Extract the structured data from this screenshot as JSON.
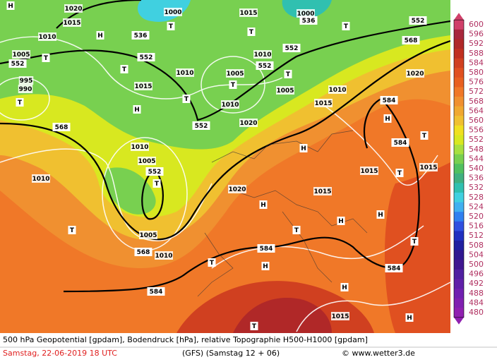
{
  "legend": {
    "levels": [
      600,
      596,
      592,
      588,
      584,
      580,
      576,
      572,
      568,
      564,
      560,
      556,
      552,
      548,
      544,
      540,
      536,
      532,
      528,
      524,
      520,
      516,
      512,
      508,
      504,
      500,
      496,
      492,
      488,
      484,
      480
    ],
    "colors": [
      "#d0406a",
      "#a8283c",
      "#b02828",
      "#c03020",
      "#d04020",
      "#e05020",
      "#e86020",
      "#f07828",
      "#f09030",
      "#f0a830",
      "#f0c030",
      "#f0e020",
      "#d8e820",
      "#a8e040",
      "#78d050",
      "#50c060",
      "#40b080",
      "#30c0b0",
      "#40d0e0",
      "#40b0f0",
      "#3080f0",
      "#3050e0",
      "#2030c0",
      "#2020a0",
      "#301890",
      "#401890",
      "#5020a0",
      "#6020a8",
      "#7020b0",
      "#8020b0",
      "#9020b0"
    ]
  },
  "map_labels": [
    "552",
    "552",
    "552",
    "552",
    "552",
    "552",
    "552",
    "536",
    "536",
    "568",
    "568",
    "568",
    "584",
    "584",
    "584",
    "584",
    "584",
    "H",
    "H",
    "H",
    "H",
    "H",
    "H",
    "H",
    "H",
    "H",
    "H",
    "H",
    "T",
    "T",
    "T",
    "T",
    "T",
    "T",
    "T",
    "T",
    "T",
    "T",
    "T",
    "T",
    "T",
    "T",
    "T",
    "T",
    "T",
    "1000",
    "1000",
    "1005",
    "1005",
    "1005",
    "1005",
    "1005",
    "1010",
    "1010",
    "1010",
    "1010",
    "1010",
    "1010",
    "1010",
    "1010",
    "1015",
    "1015",
    "1015",
    "1015",
    "1015",
    "1015",
    "1015",
    "1015",
    "1020",
    "1020",
    "1020",
    "1020",
    "995",
    "990"
  ],
  "caption": {
    "line1": "500 hPa Geopotential [gpdam], Bodendruck [hPa], relative Topographie H500-H1000 [gpdam]",
    "date": "Samstag, 22-06-2019  18 UTC",
    "model": "(GFS)  (Samstag 12 + 06)",
    "credit": "© www.wetter3.de"
  }
}
